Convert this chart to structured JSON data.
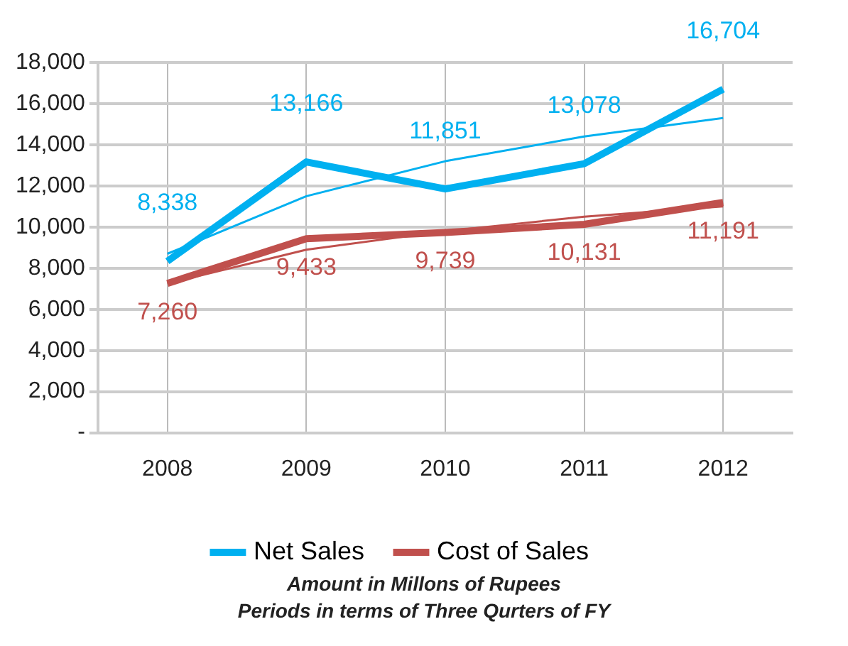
{
  "chart_data": {
    "type": "line",
    "categories": [
      "2008",
      "2009",
      "2010",
      "2011",
      "2012"
    ],
    "series": [
      {
        "name": "Net Sales",
        "color": "#00b0f0",
        "values": [
          8338,
          13166,
          11851,
          13078,
          16704
        ],
        "value_labels": [
          "8,338",
          "13,166",
          "11,851",
          "13,078",
          "16,704"
        ]
      },
      {
        "name": "Cost of Sales",
        "color": "#c0504d",
        "values": [
          7260,
          9433,
          9739,
          10131,
          11191
        ],
        "value_labels": [
          "7,260",
          "9,433",
          "9,739",
          "10,131",
          "11,191"
        ]
      },
      {
        "type": "line",
        "color": "#00b0f0",
        "values": [
          8700,
          11500,
          13200,
          14400,
          15300
        ]
      },
      {
        "type": "line",
        "color": "#c0504d",
        "values": [
          7250,
          8900,
          9800,
          10500,
          11000
        ]
      }
    ],
    "ylim": [
      0,
      18000
    ],
    "yticks": [
      {
        "value": 0,
        "label": "-"
      },
      {
        "value": 2000,
        "label": "2,000"
      },
      {
        "value": 4000,
        "label": "4,000"
      },
      {
        "value": 6000,
        "label": "6,000"
      },
      {
        "value": 8000,
        "label": "8,000"
      },
      {
        "value": 10000,
        "label": "10,000"
      },
      {
        "value": 12000,
        "label": "12,000"
      },
      {
        "value": 14000,
        "label": "14,000"
      },
      {
        "value": 16000,
        "label": "16,000"
      },
      {
        "value": 18000,
        "label": "18,000"
      }
    ],
    "grid": true,
    "legend": "bottom",
    "marker": "none",
    "annotations": [
      "Amount in Millons of Rupees",
      "Periods in terms of Three Qurters of FY"
    ]
  }
}
